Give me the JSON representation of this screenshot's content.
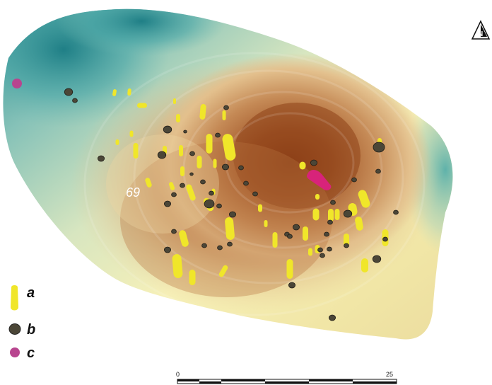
{
  "map": {
    "site_label": "69",
    "colors": {
      "relief_low": "#3a9ea0",
      "relief_mid": "#f3efb0",
      "relief_high": "#93461c",
      "feature_a": "#f0e62a",
      "feature_b": "#4b4637",
      "feature_c": "#d8237a"
    }
  },
  "legend": {
    "items": [
      {
        "key": "a",
        "label": "a",
        "icon": "yellow-elongated-pit-icon"
      },
      {
        "key": "b",
        "label": "b",
        "icon": "dark-round-pit-icon"
      },
      {
        "key": "c",
        "label": "c",
        "icon": "magenta-dot-icon"
      }
    ]
  },
  "scale_bar": {
    "start_label": "0",
    "end_label": "25"
  },
  "north_arrow": {
    "letter": "N",
    "icon": "north-arrow-icon"
  }
}
